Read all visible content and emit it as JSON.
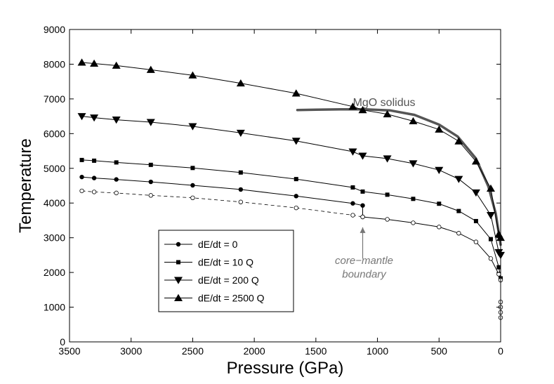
{
  "chart_data": {
    "type": "line",
    "title": "",
    "xlabel": "Pressure (GPa)",
    "ylabel": "Temperature",
    "xlim": [
      3500,
      0
    ],
    "ylim": [
      0,
      9000
    ],
    "x_reversed": true,
    "xticks": [
      3500,
      3000,
      2500,
      2000,
      1500,
      1000,
      500,
      0
    ],
    "yticks": [
      0,
      1000,
      2000,
      3000,
      4000,
      5000,
      6000,
      7000,
      8000,
      9000
    ],
    "grid": false,
    "legend_position": "lower-left",
    "series": [
      {
        "name": "dE/dt = 0",
        "marker": "circle",
        "mantle": {
          "x": [
            3400,
            3300,
            3120,
            2840,
            2500,
            2110,
            1660,
            1200,
            1120
          ],
          "y": [
            4750,
            4720,
            4680,
            4610,
            4510,
            4390,
            4200,
            3990,
            3930
          ]
        },
        "core": {
          "x": [
            1120,
            920,
            710,
            500,
            340,
            200,
            80,
            15,
            0
          ],
          "y": [
            3600,
            3530,
            3430,
            3310,
            3130,
            2880,
            2400,
            1950,
            1780
          ]
        }
      },
      {
        "name": "dE/dt = 10 Q",
        "marker": "square",
        "x": [
          3400,
          3300,
          3120,
          2840,
          2500,
          2110,
          1660,
          1200,
          1120,
          920,
          710,
          500,
          340,
          200,
          80,
          15,
          0
        ],
        "y": [
          5240,
          5220,
          5170,
          5100,
          5010,
          4880,
          4690,
          4450,
          4330,
          4240,
          4120,
          3980,
          3770,
          3480,
          2960,
          2150,
          1830
        ]
      },
      {
        "name": "dE/dt = 200 Q",
        "marker": "triangle-down",
        "x": [
          3400,
          3300,
          3120,
          2840,
          2500,
          2110,
          1660,
          1200,
          1120,
          920,
          710,
          500,
          340,
          200,
          80,
          15,
          0
        ],
        "y": [
          6500,
          6460,
          6400,
          6330,
          6210,
          6020,
          5790,
          5480,
          5360,
          5280,
          5140,
          4950,
          4690,
          4300,
          3650,
          2580,
          2500
        ]
      },
      {
        "name": "dE/dt = 2500 Q",
        "marker": "triangle-up",
        "x": [
          3400,
          3300,
          3120,
          2840,
          2500,
          2110,
          1660,
          1200,
          1120,
          920,
          710,
          500,
          340,
          200,
          80,
          15,
          0
        ],
        "y": [
          8050,
          8020,
          7960,
          7840,
          7680,
          7450,
          7160,
          6780,
          6680,
          6560,
          6360,
          6120,
          5780,
          5200,
          4420,
          3100,
          3000
        ]
      },
      {
        "name": "MgO solidus",
        "marker": "none",
        "x": [
          1650,
          1500,
          1300,
          1100,
          900,
          700,
          500,
          350,
          200,
          100,
          40,
          0
        ],
        "y": [
          6680,
          6690,
          6700,
          6700,
          6670,
          6540,
          6260,
          5920,
          5280,
          4480,
          3700,
          2800
        ]
      }
    ],
    "core_interior_points": {
      "x": [
        0,
        0,
        0,
        0
      ],
      "y": [
        1150,
        1000,
        850,
        700
      ]
    },
    "annotations": [
      {
        "text": "MgO solidus",
        "x": 1000,
        "y": 6800
      },
      {
        "text": "core−mantle",
        "x": 1120,
        "y": 2250
      },
      {
        "text": "boundary",
        "x": 1120,
        "y": 1850
      }
    ],
    "legend": [
      "dE/dt = 0",
      "dE/dt = 10 Q",
      "dE/dt = 200 Q",
      "dE/dt = 2500 Q"
    ]
  },
  "colors": {
    "series": "#000000",
    "solidus": "#555555",
    "annotation": "#777777"
  }
}
